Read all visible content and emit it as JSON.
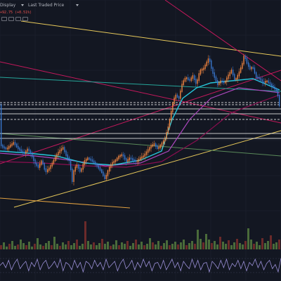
{
  "toolbar": {
    "display_label": "Display",
    "price_source_label": "Last Traded Price",
    "price_change": "+92.75 (+0.51%)",
    "indicator_buttons": [
      "toggle-indicator-icon",
      "settings-icon",
      "close-icon",
      "more-icon"
    ]
  },
  "colors": {
    "background": "#131722",
    "grid": "#1e2230",
    "candle_up": "#ff8c42",
    "candle_down": "#3a7bd5",
    "ma_fast": "#26c6da",
    "ma_mid": "#ab47bc",
    "ma_slow": "#880e4f",
    "trend_yellow": "#e6c85a",
    "trend_red": "#c2185b",
    "trend_teal": "#26a69a",
    "level_white": "#ffffff",
    "volume_up": "#4a6b3a",
    "volume_down": "#6b2a2a",
    "oscillator": "#9a8fd6"
  },
  "chart_data": {
    "type": "candlestick",
    "price_path": [
      [
        0,
        205
      ],
      [
        5,
        210
      ],
      [
        10,
        212
      ],
      [
        15,
        207
      ],
      [
        20,
        203
      ],
      [
        25,
        210
      ],
      [
        30,
        215
      ],
      [
        35,
        218
      ],
      [
        40,
        212
      ],
      [
        45,
        220
      ],
      [
        50,
        232
      ],
      [
        55,
        238
      ],
      [
        60,
        228
      ],
      [
        65,
        245
      ],
      [
        70,
        240
      ],
      [
        75,
        232
      ],
      [
        80,
        222
      ],
      [
        85,
        215
      ],
      [
        90,
        210
      ],
      [
        95,
        222
      ],
      [
        100,
        230
      ],
      [
        103,
        260
      ],
      [
        106,
        240
      ],
      [
        110,
        235
      ],
      [
        115,
        245
      ],
      [
        120,
        230
      ],
      [
        125,
        225
      ],
      [
        130,
        228
      ],
      [
        135,
        232
      ],
      [
        140,
        238
      ],
      [
        145,
        245
      ],
      [
        150,
        255
      ],
      [
        155,
        240
      ],
      [
        160,
        232
      ],
      [
        165,
        228
      ],
      [
        170,
        222
      ],
      [
        175,
        220
      ],
      [
        180,
        230
      ],
      [
        185,
        225
      ],
      [
        190,
        228
      ],
      [
        195,
        230
      ],
      [
        200,
        225
      ],
      [
        205,
        222
      ],
      [
        210,
        215
      ],
      [
        215,
        208
      ],
      [
        220,
        205
      ],
      [
        225,
        212
      ],
      [
        230,
        205
      ],
      [
        235,
        198
      ],
      [
        240,
        180
      ],
      [
        243,
        165
      ],
      [
        246,
        148
      ],
      [
        250,
        135
      ],
      [
        255,
        140
      ],
      [
        260,
        118
      ],
      [
        265,
        110
      ],
      [
        270,
        115
      ],
      [
        275,
        108
      ],
      [
        280,
        120
      ],
      [
        285,
        100
      ],
      [
        290,
        98
      ],
      [
        295,
        88
      ],
      [
        298,
        82
      ],
      [
        302,
        100
      ],
      [
        305,
        108
      ],
      [
        310,
        120
      ],
      [
        315,
        115
      ],
      [
        320,
        118
      ],
      [
        325,
        108
      ],
      [
        330,
        100
      ],
      [
        335,
        115
      ],
      [
        340,
        105
      ],
      [
        345,
        92
      ],
      [
        348,
        78
      ],
      [
        352,
        90
      ],
      [
        356,
        98
      ],
      [
        360,
        95
      ],
      [
        365,
        110
      ],
      [
        370,
        112
      ],
      [
        375,
        118
      ],
      [
        380,
        115
      ],
      [
        385,
        120
      ],
      [
        390,
        125
      ],
      [
        395,
        130
      ],
      [
        398,
        150
      ]
    ],
    "ma_fast_path": [
      [
        0,
        215
      ],
      [
        40,
        218
      ],
      [
        80,
        222
      ],
      [
        120,
        232
      ],
      [
        160,
        235
      ],
      [
        200,
        228
      ],
      [
        230,
        215
      ],
      [
        245,
        170
      ],
      [
        260,
        140
      ],
      [
        280,
        125
      ],
      [
        300,
        118
      ],
      [
        330,
        115
      ],
      [
        360,
        112
      ],
      [
        398,
        128
      ]
    ],
    "ma_mid_path": [
      [
        0,
        218
      ],
      [
        50,
        222
      ],
      [
        100,
        228
      ],
      [
        150,
        236
      ],
      [
        200,
        232
      ],
      [
        240,
        215
      ],
      [
        270,
        170
      ],
      [
        300,
        140
      ],
      [
        340,
        125
      ],
      [
        398,
        132
      ]
    ],
    "ma_slow_path": [
      [
        0,
        230
      ],
      [
        60,
        232
      ],
      [
        120,
        236
      ],
      [
        180,
        238
      ],
      [
        230,
        230
      ],
      [
        280,
        200
      ],
      [
        330,
        160
      ],
      [
        398,
        135
      ]
    ],
    "trend_lines": [
      {
        "kind": "yellow-resistance",
        "x1": 30,
        "y1": 30,
        "x2": 400,
        "y2": 80
      },
      {
        "kind": "yellow-support",
        "x1": 20,
        "y1": 295,
        "x2": 400,
        "y2": 186
      },
      {
        "kind": "orange-short",
        "x1": 0,
        "y1": 282,
        "x2": 185,
        "y2": 296
      },
      {
        "kind": "red-long-down",
        "x1": 0,
        "y1": 88,
        "x2": 400,
        "y2": 175
      },
      {
        "kind": "red-up",
        "x1": 0,
        "y1": 233,
        "x2": 400,
        "y2": 100
      },
      {
        "kind": "red-steep",
        "x1": 235,
        "y1": 0,
        "x2": 400,
        "y2": 115
      },
      {
        "kind": "teal-fan",
        "x1": 0,
        "y1": 110,
        "x2": 400,
        "y2": 130
      },
      {
        "kind": "green-fan",
        "x1": 0,
        "y1": 190,
        "x2": 400,
        "y2": 222
      }
    ],
    "horizontal_levels": [
      {
        "style": "dashed",
        "y": 146
      },
      {
        "style": "dashed",
        "y": 149
      },
      {
        "style": "solid",
        "y": 155
      },
      {
        "style": "solid",
        "y": 162
      },
      {
        "style": "dashed",
        "y": 170
      },
      {
        "style": "solid",
        "y": 190
      },
      {
        "style": "solid",
        "y": 197
      }
    ],
    "volume": {
      "baseline_y": 355,
      "bars": [
        6,
        10,
        4,
        8,
        12,
        5,
        7,
        14,
        9,
        6,
        11,
        4,
        8,
        16,
        7,
        5,
        9,
        12,
        6,
        18,
        8,
        5,
        10,
        7,
        12,
        6,
        9,
        14,
        5,
        8,
        40,
        12,
        7,
        10,
        6,
        9,
        15,
        8,
        11,
        5,
        7,
        13,
        6,
        10,
        8,
        12,
        5,
        9,
        14,
        7,
        11,
        6,
        8,
        16,
        10,
        7,
        12,
        5,
        9,
        13,
        6,
        8,
        11,
        7,
        10,
        14,
        6,
        9,
        12,
        8,
        28,
        15,
        10,
        22,
        14,
        9,
        12,
        7,
        18,
        11,
        8,
        13,
        6,
        10,
        15,
        9,
        7,
        12,
        30,
        14,
        8,
        11,
        6,
        16,
        9,
        12,
        20,
        8,
        10,
        14
      ]
    },
    "oscillator": {
      "midline_y": 378,
      "values": [
        0,
        3,
        -2,
        5,
        -4,
        2,
        6,
        -3,
        1,
        4,
        -5,
        3,
        -1,
        6,
        -4,
        2,
        5,
        -3,
        0,
        4,
        -2,
        6,
        -5,
        3,
        1,
        -4,
        5,
        -2,
        3,
        -6,
        4,
        2,
        -3,
        5,
        -1,
        3,
        -4,
        6,
        -2,
        1,
        4,
        -5,
        2,
        6,
        -3,
        0,
        5,
        -4,
        3,
        -2,
        6,
        -1,
        4,
        -5,
        2,
        3,
        -3,
        5,
        -4,
        1,
        6,
        -2,
        3,
        -5,
        4,
        0,
        -3,
        6,
        -2,
        5,
        -4,
        2,
        3,
        -6,
        4,
        1,
        -3,
        5,
        -2,
        6,
        -4,
        2,
        -1,
        5,
        -3,
        4,
        -5,
        3,
        0,
        6,
        -2,
        4,
        -4,
        2,
        5,
        -3,
        1,
        -6,
        7
      ]
    }
  }
}
